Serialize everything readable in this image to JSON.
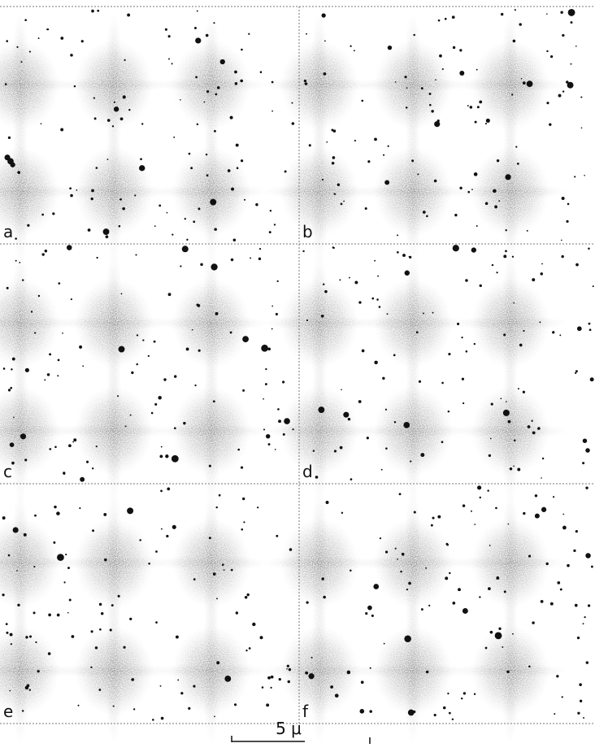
{
  "panels": [
    {
      "label": "a"
    },
    {
      "label": "b"
    },
    {
      "label": "c"
    },
    {
      "label": "d"
    },
    {
      "label": "e"
    },
    {
      "label": "f"
    }
  ],
  "scale_bar": {
    "label": "5 μ"
  }
}
